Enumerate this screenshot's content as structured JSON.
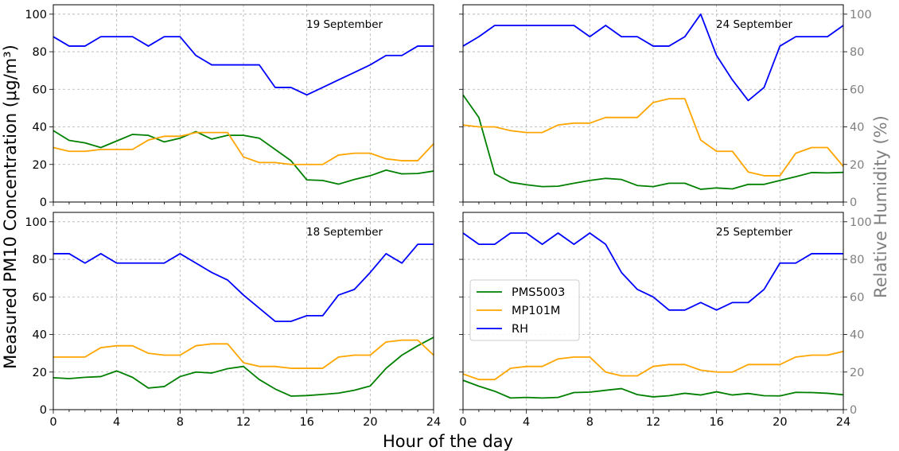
{
  "figure": {
    "ylabel_left": "Measured PM10 Concentration (μg/m³)",
    "ylabel_right": "Relative Humidity (%)",
    "xlabel": "Hour of the day"
  },
  "colors": {
    "PMS5003": "#008000",
    "MP101M": "#ffa500",
    "RH": "#0000ff",
    "grid": "#b0b0b0",
    "right_label": "#808080"
  },
  "legend": {
    "placement": "center-left of bottom-right panel",
    "entries": [
      "PMS5003",
      "MP101M",
      "RH"
    ]
  },
  "chart_data": [
    {
      "type": "line",
      "title": "19 September",
      "x": [
        0,
        1,
        2,
        3,
        4,
        5,
        6,
        7,
        8,
        9,
        10,
        11,
        12,
        13,
        14,
        15,
        16,
        17,
        18,
        19,
        20,
        21,
        22,
        23,
        24
      ],
      "xlim": [
        0,
        24
      ],
      "ylim": [
        0,
        105
      ],
      "rh_ylim": [
        0,
        105
      ],
      "xticks": [
        0,
        4,
        8,
        12,
        16,
        20,
        24
      ],
      "yticks": [
        0,
        20,
        40,
        60,
        80,
        100
      ],
      "grid": true,
      "series": [
        {
          "name": "PMS5003",
          "values": [
            38,
            32.8,
            31.5,
            29,
            32.5,
            36,
            35.5,
            32,
            34,
            37.5,
            33.5,
            35.5,
            35.5,
            34,
            28,
            22,
            11.8,
            11.5,
            9.5,
            12,
            14,
            17,
            15,
            15.2,
            16.5
          ]
        },
        {
          "name": "MP101M",
          "values": [
            29,
            27,
            27,
            28,
            28,
            28,
            33,
            35,
            35,
            37,
            37,
            37,
            24,
            21,
            21,
            20,
            20,
            20,
            25,
            26,
            26,
            23,
            22,
            22,
            31
          ]
        },
        {
          "name": "RH",
          "axis": "right",
          "values": [
            88,
            83,
            83,
            88,
            88,
            88,
            83,
            88,
            88,
            78,
            73,
            73,
            73,
            73,
            61,
            61,
            57,
            61,
            65,
            69,
            73,
            78,
            78,
            83,
            83
          ]
        }
      ]
    },
    {
      "type": "line",
      "title": "24 September",
      "x": [
        0,
        1,
        2,
        3,
        4,
        5,
        6,
        7,
        8,
        9,
        10,
        11,
        12,
        13,
        14,
        15,
        16,
        17,
        18,
        19,
        20,
        21,
        22,
        23,
        24
      ],
      "xlim": [
        0,
        24
      ],
      "ylim": [
        0,
        105
      ],
      "rh_ylim": [
        0,
        105
      ],
      "xticks": [
        0,
        4,
        8,
        12,
        16,
        20,
        24
      ],
      "yticks": [
        0,
        20,
        40,
        60,
        80,
        100
      ],
      "grid": true,
      "series": [
        {
          "name": "PMS5003",
          "values": [
            57,
            45,
            15,
            10.5,
            9.2,
            8.2,
            8.4,
            10,
            11.5,
            12.6,
            12,
            8.8,
            8.2,
            10,
            10,
            6.8,
            7.5,
            7,
            9.4,
            9.4,
            11.5,
            13.5,
            15.7,
            15.5,
            15.8
          ]
        },
        {
          "name": "MP101M",
          "values": [
            41,
            40,
            40,
            38,
            37,
            37,
            41,
            42,
            42,
            45,
            45,
            45,
            53,
            55,
            55,
            33,
            27,
            27,
            16,
            14,
            14,
            26,
            29,
            29,
            19
          ]
        },
        {
          "name": "RH",
          "axis": "right",
          "values": [
            83,
            88,
            94,
            94,
            94,
            94,
            94,
            94,
            88,
            94,
            88,
            88,
            83,
            83,
            88,
            100,
            78,
            65,
            54,
            61,
            83,
            88,
            88,
            88,
            94
          ]
        }
      ]
    },
    {
      "type": "line",
      "title": "18 September",
      "x": [
        0,
        1,
        2,
        3,
        4,
        5,
        6,
        7,
        8,
        9,
        10,
        11,
        12,
        13,
        14,
        15,
        16,
        17,
        18,
        19,
        20,
        21,
        22,
        23,
        24
      ],
      "xlim": [
        0,
        24
      ],
      "ylim": [
        0,
        105
      ],
      "rh_ylim": [
        0,
        105
      ],
      "xticks": [
        0,
        4,
        8,
        12,
        16,
        20,
        24
      ],
      "yticks": [
        0,
        20,
        40,
        60,
        80,
        100
      ],
      "grid": true,
      "series": [
        {
          "name": "PMS5003",
          "values": [
            17,
            16.5,
            17.2,
            17.6,
            20.6,
            17.2,
            11.5,
            12.3,
            17.6,
            20,
            19.5,
            21.8,
            23,
            16,
            11,
            7.2,
            7.5,
            8.1,
            8.8,
            10.3,
            12.6,
            22,
            29,
            34,
            38.5
          ]
        },
        {
          "name": "MP101M",
          "values": [
            28,
            28,
            28,
            33,
            34,
            34,
            30,
            29,
            29,
            34,
            35,
            35,
            25,
            23,
            23,
            22,
            22,
            22,
            28,
            29,
            29,
            36,
            37,
            37,
            29
          ]
        },
        {
          "name": "RH",
          "axis": "right",
          "values": [
            83,
            83,
            78,
            83,
            78,
            78,
            78,
            78,
            83,
            78,
            73,
            69,
            61,
            54,
            47,
            47,
            50,
            50,
            61,
            64,
            73,
            83,
            78,
            88,
            88
          ]
        }
      ]
    },
    {
      "type": "line",
      "title": "25 September",
      "x": [
        0,
        1,
        2,
        3,
        4,
        5,
        6,
        7,
        8,
        9,
        10,
        11,
        12,
        13,
        14,
        15,
        16,
        17,
        18,
        19,
        20,
        21,
        22,
        23,
        24
      ],
      "xlim": [
        0,
        24
      ],
      "ylim": [
        0,
        105
      ],
      "rh_ylim": [
        0,
        105
      ],
      "xticks": [
        0,
        4,
        8,
        12,
        16,
        20,
        24
      ],
      "yticks": [
        0,
        20,
        40,
        60,
        80,
        100
      ],
      "grid": true,
      "series": [
        {
          "name": "PMS5003",
          "values": [
            15.6,
            12.5,
            9.8,
            6.2,
            6.5,
            6.2,
            6.5,
            9.1,
            9.3,
            10.3,
            11.2,
            8,
            6.8,
            7.4,
            8.7,
            7.8,
            9.5,
            7.8,
            8.6,
            7.4,
            7.3,
            9.2,
            9.1,
            8.7,
            7.9
          ]
        },
        {
          "name": "MP101M",
          "values": [
            19,
            16,
            16,
            22,
            23,
            23,
            27,
            28,
            28,
            20,
            18,
            18,
            23,
            24,
            24,
            21,
            20,
            20,
            24,
            24,
            24,
            28,
            29,
            29,
            31
          ]
        },
        {
          "name": "RH",
          "axis": "right",
          "values": [
            94,
            88,
            88,
            94,
            94,
            88,
            94,
            88,
            94,
            88,
            73,
            64,
            60,
            53,
            53,
            57,
            53,
            57,
            57,
            64,
            78,
            78,
            83,
            83,
            83
          ]
        }
      ]
    }
  ]
}
